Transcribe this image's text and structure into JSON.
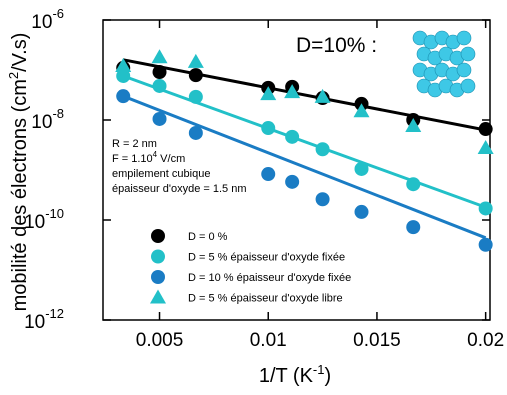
{
  "chart_data": {
    "type": "scatter",
    "log_y": true,
    "xlabel": "1/T (K",
    "xlabel_sup": "-1",
    "xlabel_end": ")",
    "ylabel": "mobilité des électrons (cm",
    "ylabel_sup": "2",
    "ylabel_end": "/V.s)",
    "xlim": [
      0.0024,
      0.0202
    ],
    "ylim": [
      1e-12,
      1e-06
    ],
    "xticks": [
      0.005,
      0.01,
      0.015,
      0.02
    ],
    "yticks": [
      {
        "value": 1e-12,
        "label": "10",
        "exponent": "-12"
      },
      {
        "value": 1e-10,
        "label": "10",
        "exponent": "-10"
      },
      {
        "value": 1e-08,
        "label": "10",
        "exponent": "-8"
      },
      {
        "value": 1e-06,
        "label": "10",
        "exponent": "-6"
      }
    ],
    "x": [
      0.00333,
      0.005,
      0.00667,
      0.01,
      0.0111,
      0.0125,
      0.01429,
      0.01667,
      0.02
    ],
    "series": [
      {
        "name": "D = 0 %",
        "color": "#000000",
        "marker": "circle",
        "values": [
          1.1e-07,
          9.1e-08,
          7.9e-08,
          4.4e-08,
          4.6e-08,
          2.75e-08,
          2.1e-08,
          1e-08,
          6.6e-09
        ]
      },
      {
        "name": "D = 5 % épaisseur d'oxyde fixée",
        "color": "#22c0c8",
        "marker": "circle",
        "values": [
          7.6e-08,
          4.8e-08,
          2.9e-08,
          6.9e-09,
          4.6e-09,
          2.6e-09,
          1.05e-09,
          5.2e-10,
          1.7e-10
        ]
      },
      {
        "name": "D = 10 % épaisseur d'oxyde fixée",
        "color": "#1a7cc4",
        "marker": "circle",
        "values": [
          3e-08,
          1.05e-08,
          5.5e-09,
          8.3e-10,
          5.8e-10,
          2.6e-10,
          1.45e-10,
          7.2e-11,
          3.2e-11
        ]
      },
      {
        "name": "D = 5 % épaisseur d'oxyde libre",
        "color": "#22c0c8",
        "marker": "triangle",
        "values": [
          1.2e-07,
          1.8e-07,
          1.45e-07,
          3.3e-08,
          3.6e-08,
          2.9e-08,
          1.5e-08,
          7.6e-09,
          2.75e-09
        ]
      }
    ],
    "fits": [
      {
        "color": "#000000",
        "x": [
          0.00333,
          0.02
        ],
        "values": [
          1.6e-07,
          6.3e-09
        ]
      },
      {
        "color": "#22c0c8",
        "x": [
          0.00333,
          0.02
        ],
        "values": [
          7.6e-08,
          1.8e-10
        ]
      },
      {
        "color": "#1a7cc4",
        "x": [
          0.00333,
          0.02
        ],
        "values": [
          3e-08,
          4.4e-11
        ]
      }
    ],
    "annotation_title": "D=10% :",
    "parameters": [
      "R = 2 nm",
      "F = 1.10",
      "4",
      " V/cm",
      "empilement cubique",
      "épaisseur d'oxyde = 1.5 nm"
    ]
  }
}
